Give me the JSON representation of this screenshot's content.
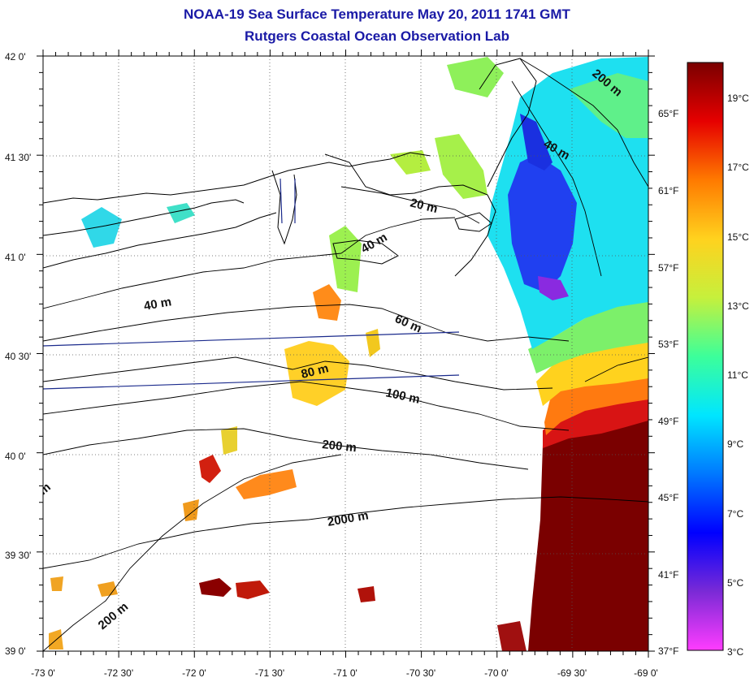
{
  "title": "NOAA-19 Sea Surface Temperature May 20, 2011 1741 GMT",
  "subtitle": "Rutgers Coastal Ocean Observation Lab",
  "axes": {
    "x_labels": [
      "-73 0'",
      "-72 30'",
      "-72 0'",
      "-71 30'",
      "-71 0'",
      "-70 30'",
      "-70 0'",
      "-69 30'",
      "-69 0'"
    ],
    "y_labels": [
      "42 0'",
      "41 30'",
      "41 0'",
      "40 30'",
      "40 0'",
      "39 30'",
      "39 0'"
    ]
  },
  "contour_labels": [
    {
      "id": "c200-top",
      "text": "200 m"
    },
    {
      "id": "c40-ne",
      "text": "40 m"
    },
    {
      "id": "c20",
      "text": "20 m"
    },
    {
      "id": "c40-mid",
      "text": "40 m"
    },
    {
      "id": "c40-west",
      "text": "40 m"
    },
    {
      "id": "c60",
      "text": "60 m"
    },
    {
      "id": "c80",
      "text": "80 m"
    },
    {
      "id": "c100",
      "text": "100 m"
    },
    {
      "id": "c200-mid",
      "text": "200 m"
    },
    {
      "id": "c2000",
      "text": "2000 m"
    },
    {
      "id": "c200-sw",
      "text": "200 m"
    },
    {
      "id": "c-edge",
      "text": "m"
    }
  ],
  "colorbar": {
    "celsius": [
      "19°C",
      "17°C",
      "15°C",
      "13°C",
      "11°C",
      "9°C",
      "7°C",
      "5°C",
      "3°C"
    ],
    "fahrenheit": [
      "65°F",
      "61°F",
      "57°F",
      "53°F",
      "49°F",
      "45°F",
      "41°F",
      "37°F"
    ],
    "colors": [
      "#ff3cff",
      "#7a2ad6",
      "#0000ff",
      "#0078ff",
      "#00e6ff",
      "#3cff9a",
      "#c6f03c",
      "#ffd21e",
      "#ff7a00",
      "#e60000",
      "#7a0000"
    ]
  }
}
